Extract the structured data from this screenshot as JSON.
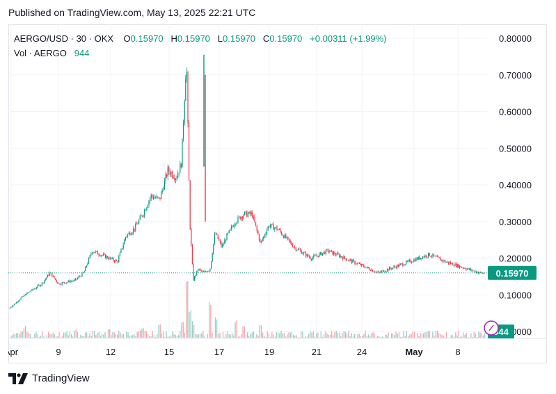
{
  "header": {
    "published": "Published on TradingView.com, May 13, 2025 22:21 UTC"
  },
  "legend": {
    "symbol": "AERGO/USD · 30 · OKX",
    "o_label": "O",
    "o_value": "0.15970",
    "h_label": "H",
    "h_value": "0.15970",
    "l_label": "L",
    "l_value": "0.15970",
    "c_label": "C",
    "c_value": "0.15970",
    "change": "+0.00311 (+1.99%)",
    "vol_label": "Vol · AERGO",
    "vol_value": "944"
  },
  "price_badge": "0.15970",
  "volume_badge": "944",
  "footer": {
    "brand": "TradingView"
  },
  "colors": {
    "up": "#089981",
    "down": "#f23645",
    "grid": "#f0f3fa",
    "badge": "#089981"
  },
  "chart_data": {
    "type": "candlestick",
    "y_ticks": [
      "0.80000",
      "0.70000",
      "0.60000",
      "0.50000",
      "0.40000",
      "0.30000",
      "0.20000",
      "0.10000",
      "0.00000"
    ],
    "x_ticks": [
      "Apr",
      "9",
      "12",
      "15",
      "17",
      "19",
      "21",
      "24",
      "May",
      "8"
    ],
    "ylim": [
      0.0,
      0.8
    ],
    "last_price": 0.1597,
    "close_path": [
      [
        "Apr 6",
        0.06
      ],
      [
        "Apr 7",
        0.1
      ],
      [
        "Apr 8",
        0.13
      ],
      [
        "Apr 8.5",
        0.16
      ],
      [
        "Apr 9",
        0.13
      ],
      [
        "Apr 10",
        0.14
      ],
      [
        "Apr 10.5",
        0.16
      ],
      [
        "Apr 11",
        0.22
      ],
      [
        "Apr 11.5",
        0.21
      ],
      [
        "Apr 12",
        0.2
      ],
      [
        "Apr 12.5",
        0.19
      ],
      [
        "Apr 13",
        0.26
      ],
      [
        "Apr 13.5",
        0.28
      ],
      [
        "Apr 14",
        0.32
      ],
      [
        "Apr 14.5",
        0.37
      ],
      [
        "Apr 15",
        0.36
      ],
      [
        "Apr 15.5",
        0.44
      ],
      [
        "Apr 16",
        0.42
      ],
      [
        "Apr 16.3",
        0.46
      ],
      [
        "Apr 16.6",
        0.75
      ],
      [
        "Apr 16.8",
        0.3
      ],
      [
        "Apr 17",
        0.14
      ],
      [
        "Apr 17.3",
        0.17
      ],
      [
        "Apr 17.6",
        0.16
      ],
      [
        "Apr 18",
        0.17
      ],
      [
        "Apr 18.3",
        0.27
      ],
      [
        "Apr 18.7",
        0.23
      ],
      [
        "Apr 19",
        0.26
      ],
      [
        "Apr 19.5",
        0.3
      ],
      [
        "Apr 20",
        0.32
      ],
      [
        "Apr 20.5",
        0.32
      ],
      [
        "Apr 21",
        0.24
      ],
      [
        "Apr 21.5",
        0.29
      ],
      [
        "Apr 22",
        0.28
      ],
      [
        "Apr 23",
        0.23
      ],
      [
        "Apr 24",
        0.2
      ],
      [
        "Apr 25",
        0.22
      ],
      [
        "Apr 26",
        0.2
      ],
      [
        "Apr 27",
        0.18
      ],
      [
        "Apr 28",
        0.16
      ],
      [
        "May 1",
        0.21
      ],
      [
        "May 2",
        0.19
      ],
      [
        "May 4",
        0.16
      ],
      [
        "May 6",
        0.15
      ],
      [
        "May 9",
        0.16
      ]
    ],
    "volume_spikes": [
      [
        "Apr 7",
        0.2
      ],
      [
        "Apr 10",
        0.15
      ],
      [
        "Apr 12",
        0.18
      ],
      [
        "Apr 14",
        0.2
      ],
      [
        "Apr 15",
        0.25
      ],
      [
        "Apr 16.3",
        0.35
      ],
      [
        "Apr 16.6",
        1.0
      ],
      [
        "Apr 16.8",
        0.6
      ],
      [
        "Apr 17",
        0.3
      ],
      [
        "Apr 18",
        0.7
      ],
      [
        "Apr 18.3",
        0.4
      ],
      [
        "Apr 19.5",
        0.3
      ],
      [
        "Apr 20",
        0.2
      ],
      [
        "Apr 21",
        0.25
      ],
      [
        "Apr 22",
        0.1
      ],
      [
        "Apr 24",
        0.1
      ],
      [
        "May 1",
        0.12
      ],
      [
        "May 4",
        0.08
      ]
    ]
  }
}
